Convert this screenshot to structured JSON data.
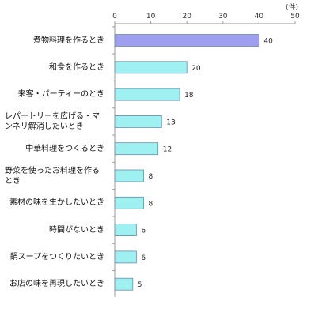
{
  "chart_data": {
    "type": "bar",
    "orientation": "horizontal",
    "unit_label": "(件)",
    "xlim": [
      0,
      50
    ],
    "x_ticks": [
      0,
      10,
      20,
      30,
      40,
      50
    ],
    "categories": [
      "煮物料理を作るとき",
      "和食を作るとき",
      "来客・パーティーのとき",
      "レパートリーを広げる・マンネリ解消したいとき",
      "中華料理をつくるとき",
      "野菜を使ったお料理を作るとき",
      "素材の味を生かしたいとき",
      "時間がないとき",
      "鍋スープをつくりたいとき",
      "お店の味を再現したいとき"
    ],
    "values": [
      40,
      20,
      18,
      13,
      12,
      8,
      8,
      6,
      6,
      5
    ],
    "grid": false,
    "colors": {
      "highlight_bar": "#9f9ff0",
      "bar": "#9ff0f0",
      "bar_stroke": "#6b8aa8",
      "axis": "#999999"
    }
  }
}
